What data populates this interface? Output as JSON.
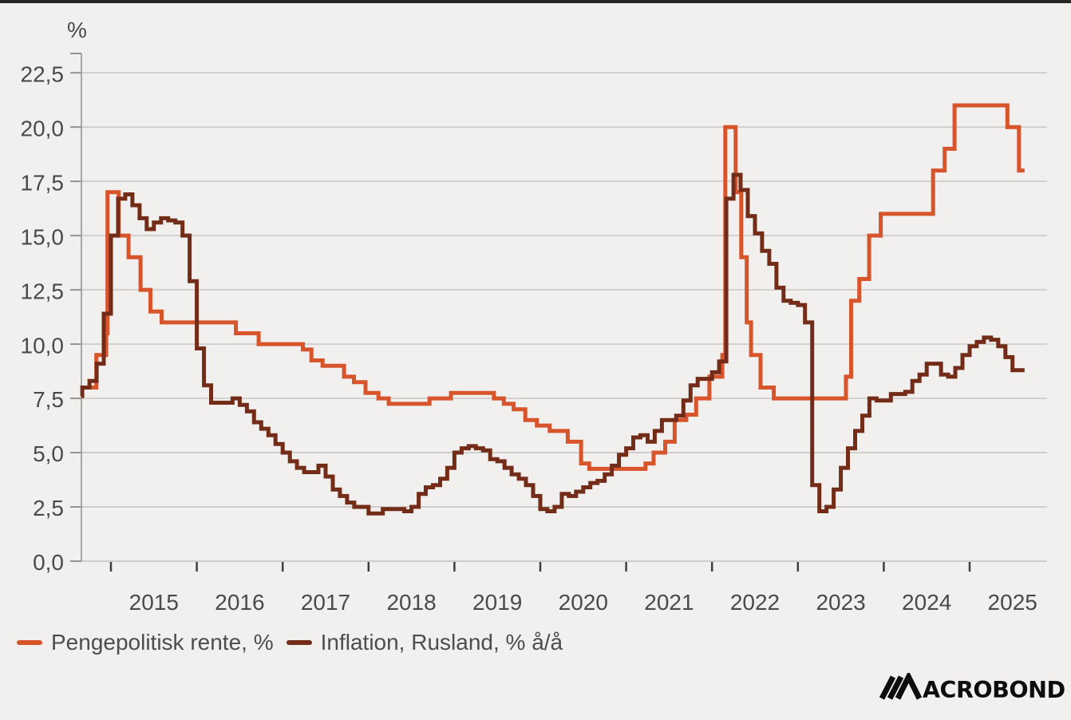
{
  "header": {
    "unit_label": "%"
  },
  "legend": [
    {
      "label": "Pengepolitisk rente, %",
      "color": "#d8542b"
    },
    {
      "label": "Inflation, Rusland, % å/å",
      "color": "#732c18"
    }
  ],
  "branding": {
    "logo_text": "MACROBOND",
    "logo_color": "#0d0d0d"
  },
  "colors": {
    "background": "#f1f0ee",
    "top_border": "#262626",
    "grid": "#c5c3c0",
    "axis": "#95938f",
    "tick": "#3f3f3f",
    "text": "#4a4a4a"
  },
  "chart_data": {
    "type": "line",
    "subtype": "step-after",
    "title": "",
    "xlabel": "",
    "ylabel": "%",
    "grid": true,
    "legend_position": "bottom-left",
    "xlim": [
      2014.656,
      2025.902
    ],
    "ylim": [
      0,
      23.5
    ],
    "x_ticks": {
      "values": [
        2015,
        2016,
        2017,
        2018,
        2019,
        2020,
        2021,
        2022,
        2023,
        2024,
        2025
      ],
      "labels": [
        "2015",
        "2016",
        "2017",
        "2018",
        "2019",
        "2020",
        "2021",
        "2022",
        "2023",
        "2024",
        "2025"
      ],
      "label_offset": 0.5
    },
    "y_ticks": {
      "values": [
        0,
        2.5,
        5,
        7.5,
        10,
        12.5,
        15,
        17.5,
        20,
        22.5
      ],
      "labels": [
        "0,0",
        "2,5",
        "5,0",
        "7,5",
        "10,0",
        "12,5",
        "15,0",
        "17,5",
        "20,0",
        "22,5"
      ]
    },
    "series": [
      {
        "name": "Pengepolitisk rente, %",
        "color": "#d8542b",
        "mode": "change_points",
        "end": 2025.64,
        "points": [
          [
            2014.656,
            8.0
          ],
          [
            2014.83,
            9.5
          ],
          [
            2014.945,
            10.5
          ],
          [
            2014.96,
            17.0
          ],
          [
            2015.09,
            15.0
          ],
          [
            2015.205,
            14.0
          ],
          [
            2015.345,
            12.5
          ],
          [
            2015.46,
            11.5
          ],
          [
            2015.59,
            11.0
          ],
          [
            2016.455,
            10.5
          ],
          [
            2016.72,
            10.0
          ],
          [
            2017.235,
            9.75
          ],
          [
            2017.335,
            9.25
          ],
          [
            2017.465,
            9.0
          ],
          [
            2017.715,
            8.5
          ],
          [
            2017.83,
            8.25
          ],
          [
            2017.965,
            7.75
          ],
          [
            2018.115,
            7.5
          ],
          [
            2018.235,
            7.25
          ],
          [
            2018.71,
            7.5
          ],
          [
            2018.96,
            7.75
          ],
          [
            2019.46,
            7.5
          ],
          [
            2019.575,
            7.25
          ],
          [
            2019.69,
            7.0
          ],
          [
            2019.825,
            6.5
          ],
          [
            2019.96,
            6.25
          ],
          [
            2020.11,
            6.0
          ],
          [
            2020.32,
            5.5
          ],
          [
            2020.475,
            4.5
          ],
          [
            2020.57,
            4.25
          ],
          [
            2021.225,
            4.5
          ],
          [
            2021.32,
            5.0
          ],
          [
            2021.455,
            5.5
          ],
          [
            2021.565,
            6.5
          ],
          [
            2021.7,
            6.75
          ],
          [
            2021.815,
            7.5
          ],
          [
            2021.97,
            8.5
          ],
          [
            2022.12,
            9.5
          ],
          [
            2022.155,
            20.0
          ],
          [
            2022.275,
            17.0
          ],
          [
            2022.34,
            14.0
          ],
          [
            2022.405,
            11.0
          ],
          [
            2022.455,
            9.5
          ],
          [
            2022.565,
            8.0
          ],
          [
            2022.72,
            7.5
          ],
          [
            2023.56,
            8.5
          ],
          [
            2023.62,
            12.0
          ],
          [
            2023.715,
            13.0
          ],
          [
            2023.83,
            15.0
          ],
          [
            2023.965,
            16.0
          ],
          [
            2024.575,
            18.0
          ],
          [
            2024.71,
            19.0
          ],
          [
            2024.825,
            21.0
          ],
          [
            2025.44,
            20.0
          ],
          [
            2025.575,
            18.0
          ]
        ]
      },
      {
        "name": "Inflation, Rusland, % å/å",
        "color": "#732c18",
        "mode": "monthly",
        "start_year": 2014,
        "start_month": 8,
        "end": 2025.64,
        "values": [
          7.6,
          8.0,
          8.3,
          9.1,
          11.4,
          15.0,
          16.7,
          16.9,
          16.4,
          15.8,
          15.3,
          15.6,
          15.8,
          15.7,
          15.6,
          15.0,
          12.9,
          9.8,
          8.1,
          7.3,
          7.3,
          7.3,
          7.5,
          7.2,
          6.9,
          6.4,
          6.1,
          5.8,
          5.4,
          5.0,
          4.6,
          4.3,
          4.1,
          4.1,
          4.4,
          3.9,
          3.3,
          3.0,
          2.7,
          2.5,
          2.5,
          2.2,
          2.2,
          2.4,
          2.4,
          2.4,
          2.3,
          2.5,
          3.1,
          3.4,
          3.5,
          3.8,
          4.3,
          5.0,
          5.2,
          5.3,
          5.2,
          5.1,
          4.7,
          4.6,
          4.3,
          4.0,
          3.8,
          3.5,
          3.0,
          2.4,
          2.3,
          2.5,
          3.1,
          3.0,
          3.2,
          3.4,
          3.6,
          3.7,
          4.0,
          4.4,
          4.9,
          5.2,
          5.7,
          5.8,
          5.5,
          6.0,
          6.5,
          6.5,
          6.7,
          7.4,
          8.1,
          8.4,
          8.4,
          8.7,
          9.2,
          16.7,
          17.8,
          17.1,
          15.9,
          15.1,
          14.3,
          13.7,
          12.6,
          12.0,
          11.9,
          11.8,
          11.0,
          3.5,
          2.3,
          2.5,
          3.3,
          4.3,
          5.2,
          6.0,
          6.7,
          7.5,
          7.4,
          7.4,
          7.7,
          7.7,
          7.8,
          8.3,
          8.6,
          9.1,
          9.1,
          8.6,
          8.5,
          8.9,
          9.5,
          9.9,
          10.1,
          10.3,
          10.2,
          9.9,
          9.4,
          8.8
        ]
      }
    ]
  }
}
